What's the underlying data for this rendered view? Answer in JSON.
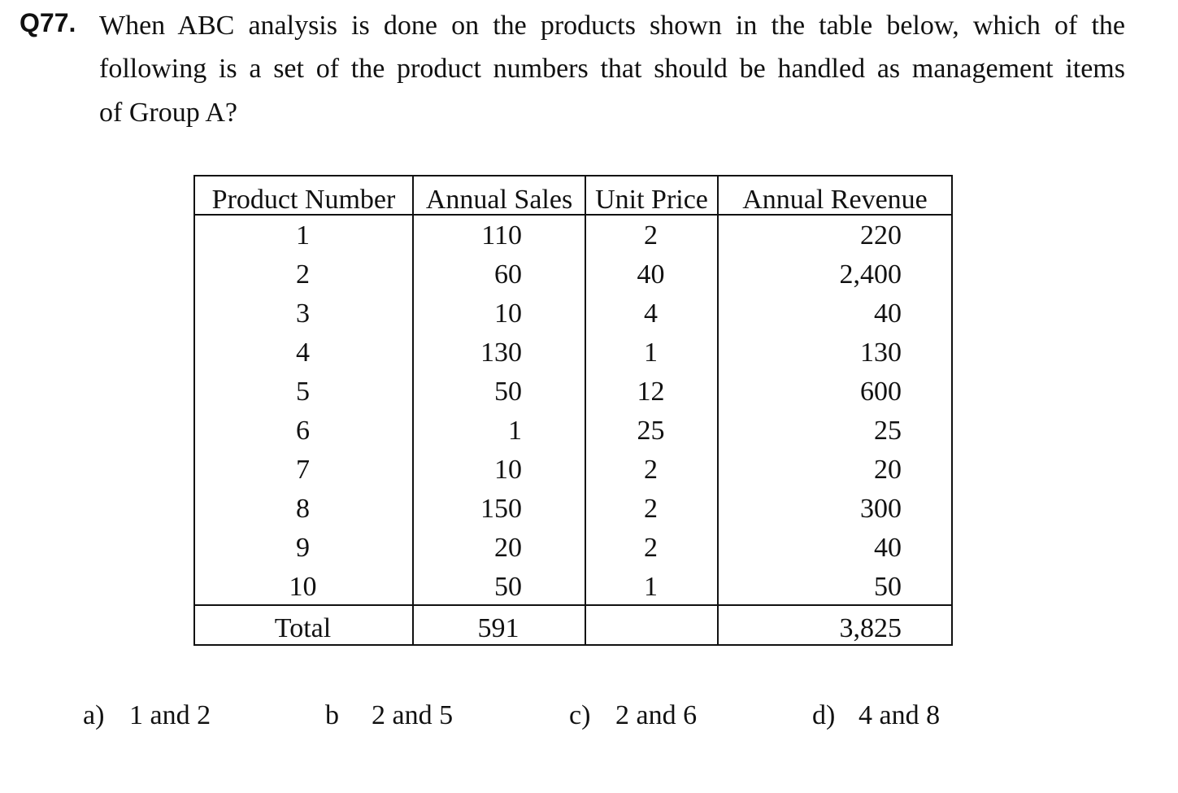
{
  "question": {
    "number": "Q77.",
    "lines": [
      "When ABC analysis is done on the products shown in the table below, which of the",
      "following is a set of the product numbers that should be handled as management items",
      "of Group A?"
    ]
  },
  "table": {
    "headers": [
      "Product Number",
      "Annual Sales",
      "Unit Price",
      "Annual Revenue"
    ],
    "rows": [
      [
        "1",
        "110",
        "2",
        "220"
      ],
      [
        "2",
        "60",
        "40",
        "2,400"
      ],
      [
        "3",
        "10",
        "4",
        "40"
      ],
      [
        "4",
        "130",
        "1",
        "130"
      ],
      [
        "5",
        "50",
        "12",
        "600"
      ],
      [
        "6",
        "1",
        "25",
        "25"
      ],
      [
        "7",
        "10",
        "2",
        "20"
      ],
      [
        "8",
        "150",
        "2",
        "300"
      ],
      [
        "9",
        "20",
        "2",
        "40"
      ],
      [
        "10",
        "50",
        "1",
        "50"
      ]
    ],
    "total": [
      "Total",
      "591",
      "",
      "3,825"
    ]
  },
  "options": [
    {
      "label": "a)",
      "text": "1 and 2"
    },
    {
      "label": "b",
      "text": "2 and 5"
    },
    {
      "label": "c)",
      "text": "2 and 6"
    },
    {
      "label": "d)",
      "text": "4 and 8"
    }
  ]
}
